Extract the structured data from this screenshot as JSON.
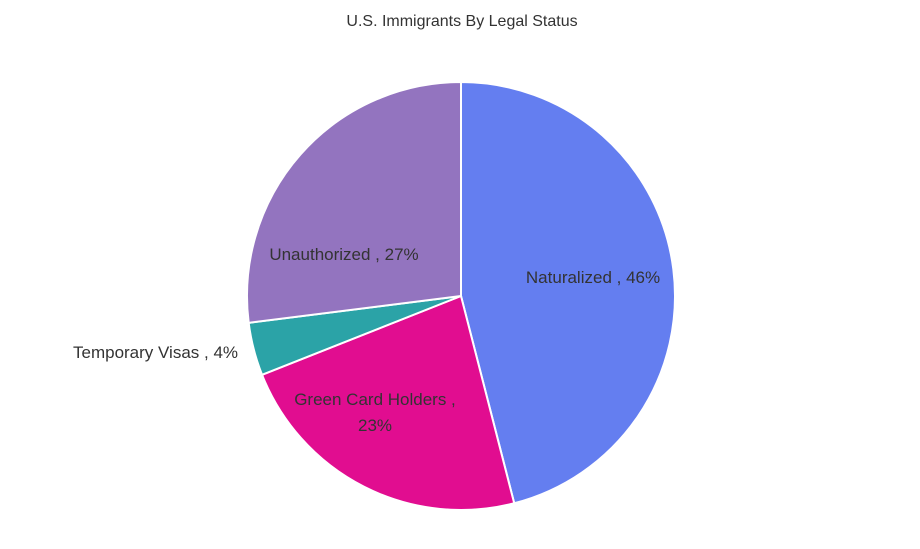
{
  "chart_data": {
    "type": "pie",
    "title": "U.S. Immigrants By Legal Status",
    "start_angle_deg": 0,
    "direction": "clockwise",
    "slices": [
      {
        "name": "Naturalized",
        "value": 46,
        "label": "Naturalized , 46%",
        "color": "#647EF0"
      },
      {
        "name": "Green Card Holders",
        "value": 23,
        "label": "Green Card Holders ,\n23%",
        "color": "#E10D90"
      },
      {
        "name": "Temporary Visas",
        "value": 4,
        "label": "Temporary Visas , 4%",
        "color": "#2BA3A7"
      },
      {
        "name": "Unauthorized",
        "value": 27,
        "label": "Unauthorized , 27%",
        "color": "#9374BF"
      }
    ]
  }
}
